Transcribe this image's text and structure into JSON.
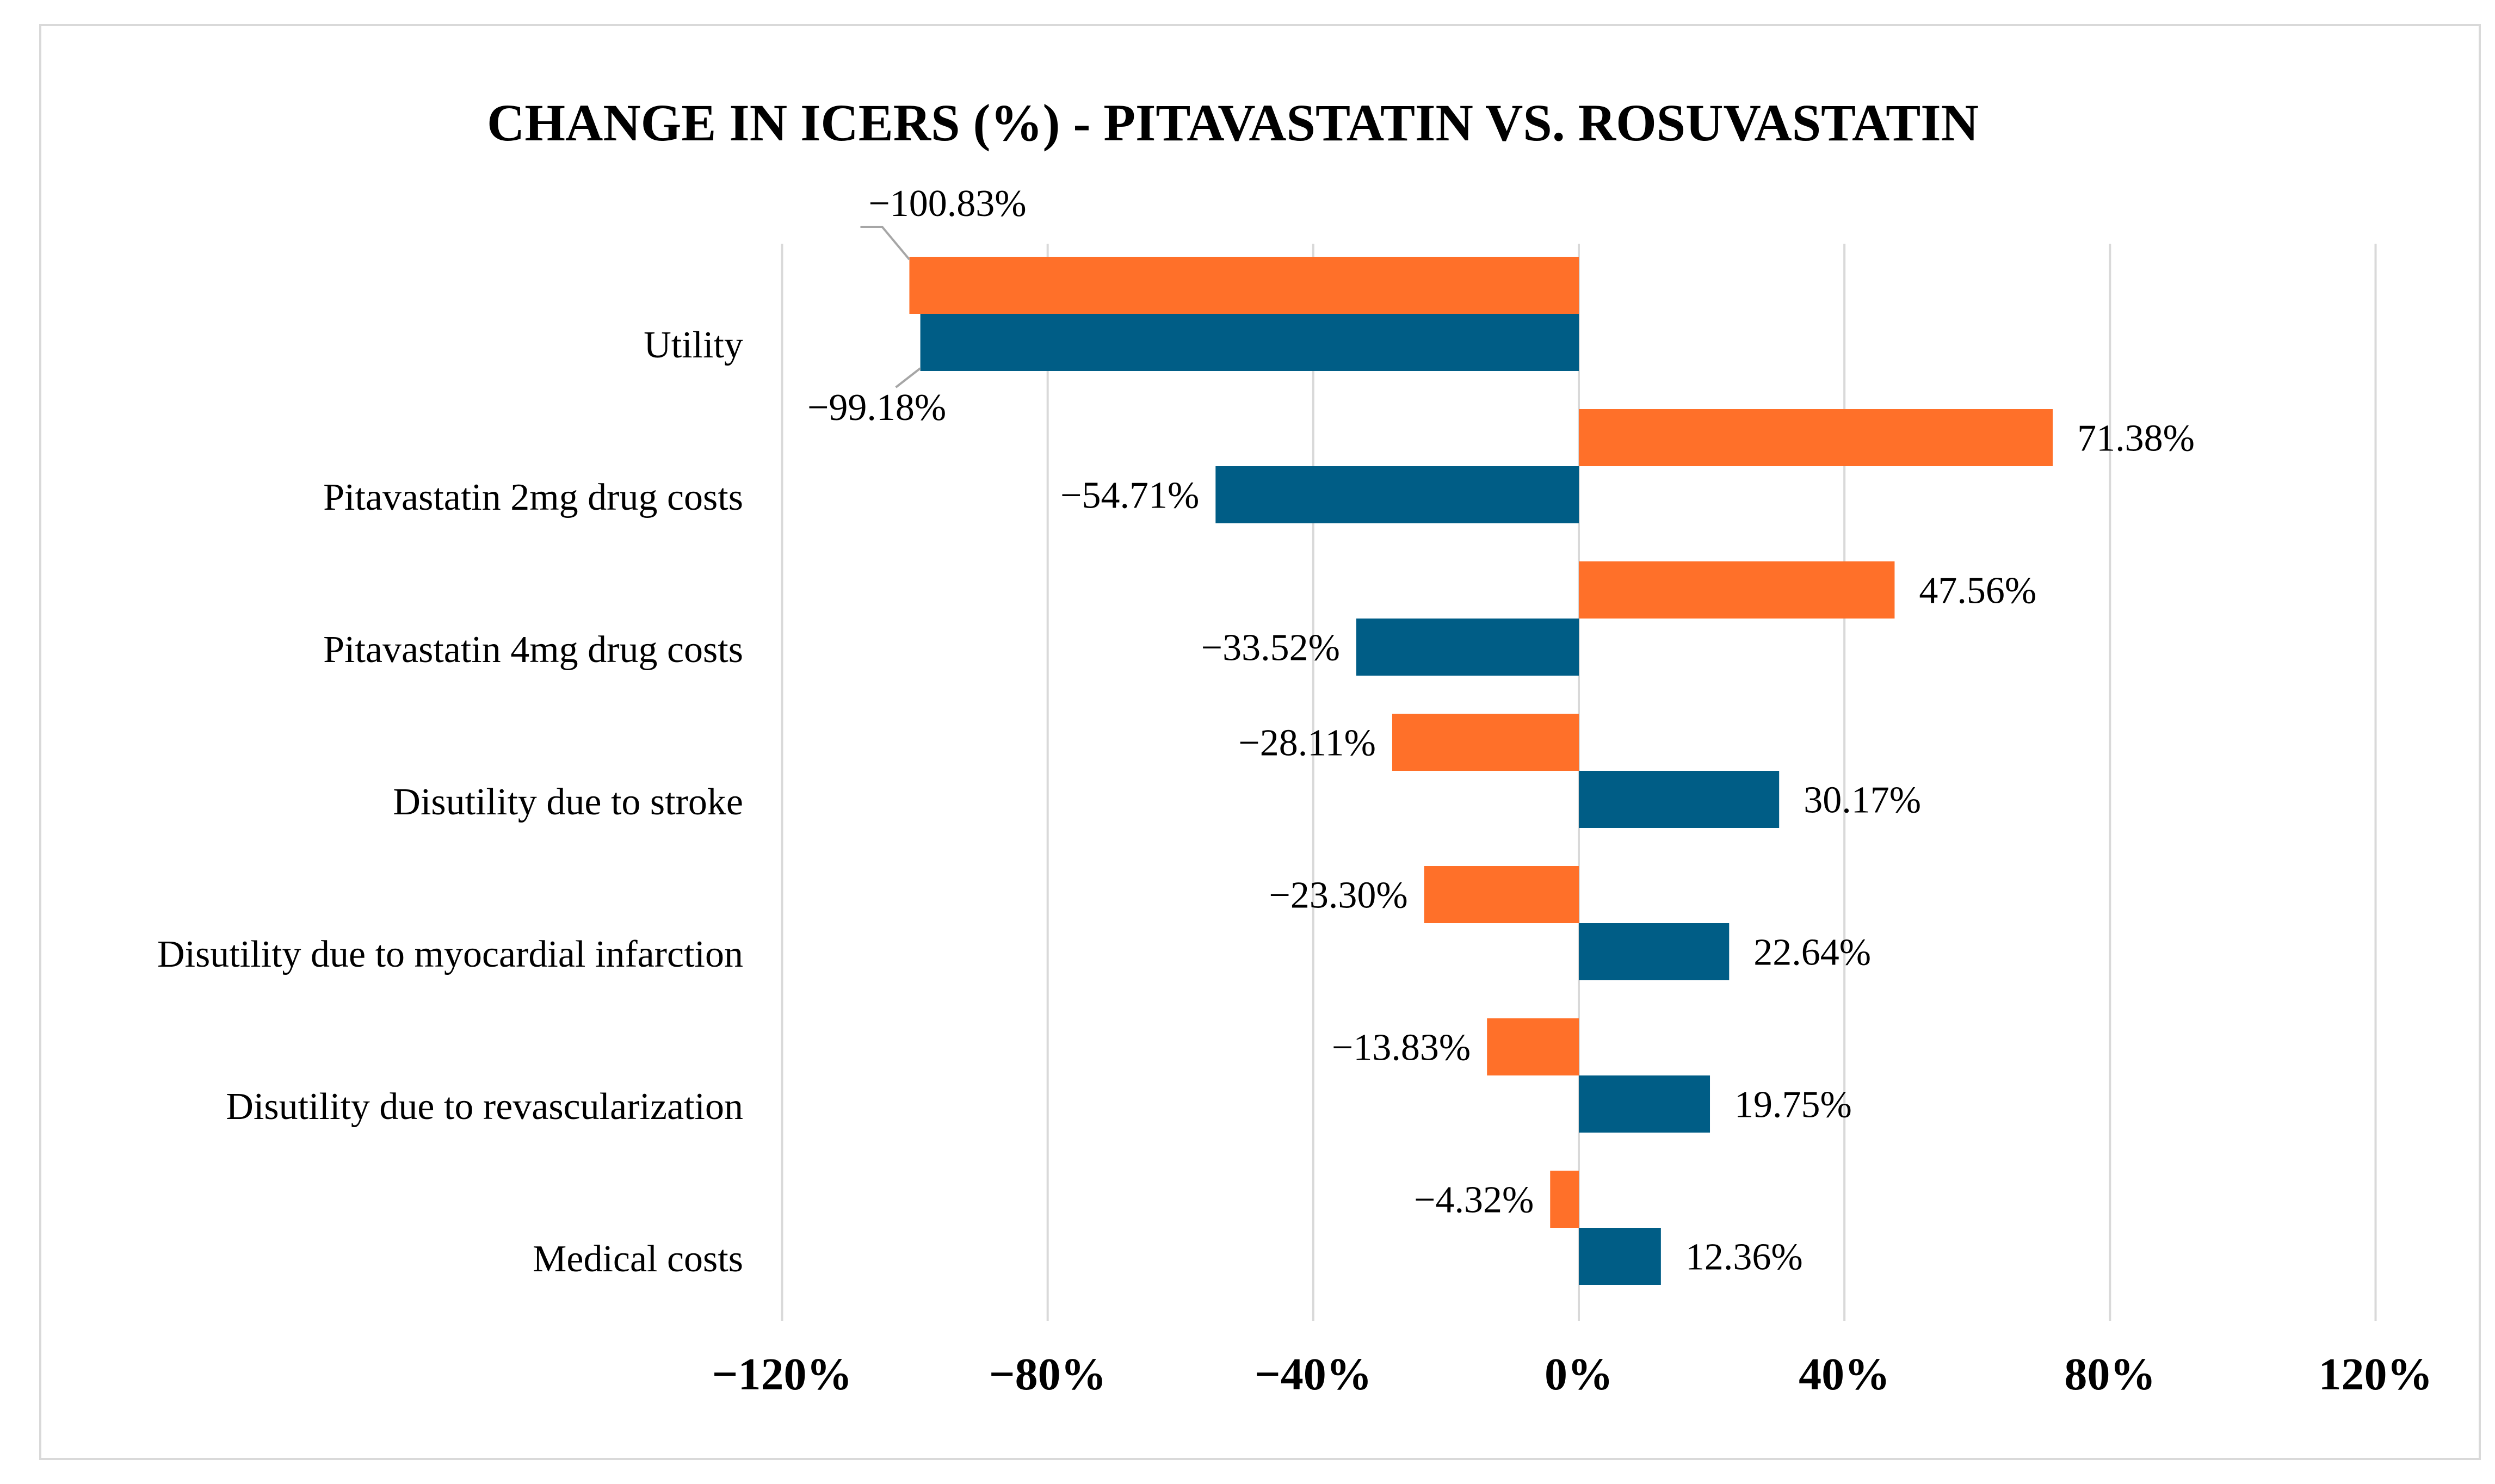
{
  "chart_data": {
    "type": "bar",
    "orientation": "horizontal",
    "title": "CHANGE IN ICERS (%) - PITAVASTATIN  VS. ROSUVASTATIN",
    "xlabel": "",
    "ylabel": "",
    "xlim": [
      -120,
      120
    ],
    "xticks": [
      -120,
      -80,
      -40,
      0,
      40,
      80,
      120
    ],
    "xtick_labels": [
      "−120%",
      "−80%",
      "−40%",
      "0%",
      "40%",
      "80%",
      "120%"
    ],
    "grid": true,
    "legend": "none",
    "categories": [
      "Utility",
      "Pitavastatin 2mg drug costs",
      "Pitavastatin 4mg drug costs",
      "Disutility due to stroke",
      "Disutility due to myocardial infarction",
      "Disutility due to revascularization",
      "Medical costs"
    ],
    "series": [
      {
        "name": "orange",
        "color": "#ff7029",
        "values": [
          -100.83,
          71.38,
          47.56,
          -28.11,
          -23.3,
          -13.83,
          -4.32
        ],
        "labels": [
          "−100.83%",
          "71.38%",
          "47.56%",
          "−28.11%",
          "−23.30%",
          "−13.83%",
          "−4.32%"
        ]
      },
      {
        "name": "blue",
        "color": "#005d86",
        "values": [
          -99.18,
          -54.71,
          -33.52,
          30.17,
          22.64,
          19.75,
          12.36
        ],
        "labels": [
          "−99.18%",
          "−54.71%",
          "−33.52%",
          "30.17%",
          "22.64%",
          "19.75%",
          "12.36%"
        ]
      }
    ]
  }
}
